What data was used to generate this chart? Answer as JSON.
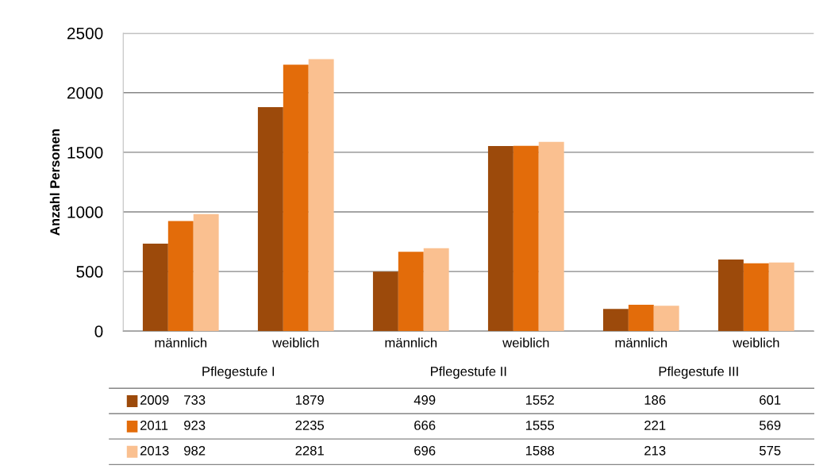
{
  "chart_data": {
    "type": "bar",
    "ylabel": "Anzahl Personen",
    "categories": [
      "männlich",
      "weiblich",
      "männlich",
      "weiblich",
      "männlich",
      "weiblich"
    ],
    "annotations": [
      "Pflegestufe I",
      "Pflegestufe II",
      "Pflegestufe III"
    ],
    "series": [
      {
        "name": "2009",
        "color": "#9c4a0b",
        "values": [
          733,
          1879,
          499,
          1552,
          186,
          601
        ]
      },
      {
        "name": "2011",
        "color": "#e36c0a",
        "values": [
          923,
          2235,
          666,
          1555,
          221,
          569
        ]
      },
      {
        "name": "2013",
        "color": "#fac090",
        "values": [
          982,
          2281,
          696,
          1588,
          213,
          575
        ]
      }
    ],
    "ylim": [
      0,
      2500
    ],
    "yticks": [
      0,
      500,
      1000,
      1500,
      2000,
      2500
    ],
    "grid": "y",
    "legend": "bottom",
    "data_labels": true
  }
}
